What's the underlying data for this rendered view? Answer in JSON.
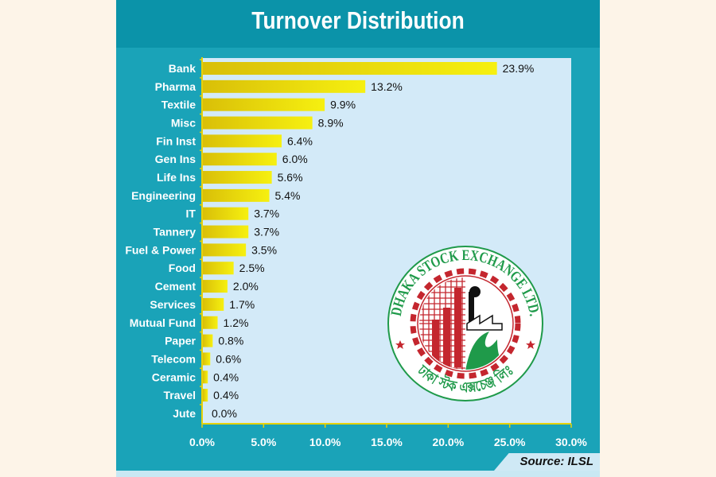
{
  "chart_data": {
    "type": "bar",
    "orientation": "horizontal",
    "title": "Turnover Distribution",
    "categories": [
      "Bank",
      "Pharma",
      "Textile",
      "Misc",
      "Fin Inst",
      "Gen Ins",
      "Life Ins",
      "Engineering",
      "IT",
      "Tannery",
      "Fuel & Power",
      "Food",
      "Cement",
      "Services",
      "Mutual Fund",
      "Paper",
      "Telecom",
      "Ceramic",
      "Travel",
      "Jute"
    ],
    "values": [
      23.9,
      13.2,
      9.9,
      8.9,
      6.4,
      6.0,
      5.6,
      5.4,
      3.7,
      3.7,
      3.5,
      2.5,
      2.0,
      1.7,
      1.2,
      0.8,
      0.6,
      0.4,
      0.4,
      0.0
    ],
    "value_labels": [
      "23.9%",
      "13.2%",
      "9.9%",
      "8.9%",
      "6.4%",
      "6.0%",
      "5.6%",
      "5.4%",
      "3.7%",
      "3.7%",
      "3.5%",
      "2.5%",
      "2.0%",
      "1.7%",
      "1.2%",
      "0.8%",
      "0.6%",
      "0.4%",
      "0.4%",
      "0.0%"
    ],
    "xlim": [
      0,
      30
    ],
    "xticks": [
      "0.0%",
      "5.0%",
      "10.0%",
      "15.0%",
      "20.0%",
      "25.0%",
      "30.0%"
    ],
    "xlabel": "",
    "ylabel": "",
    "grid": false,
    "legend": "none",
    "colors": {
      "bar": "#e6d10a",
      "bar_light": "#f5ef10",
      "plot_bg": "#d3eaf8"
    }
  },
  "source": "Source: ILSL",
  "logo": {
    "text_en": "DHAKA STOCK EXCHANGE LTD.",
    "text_bn": "ঢাকা স্টক এক্সচেঞ্জ লিঃ"
  }
}
